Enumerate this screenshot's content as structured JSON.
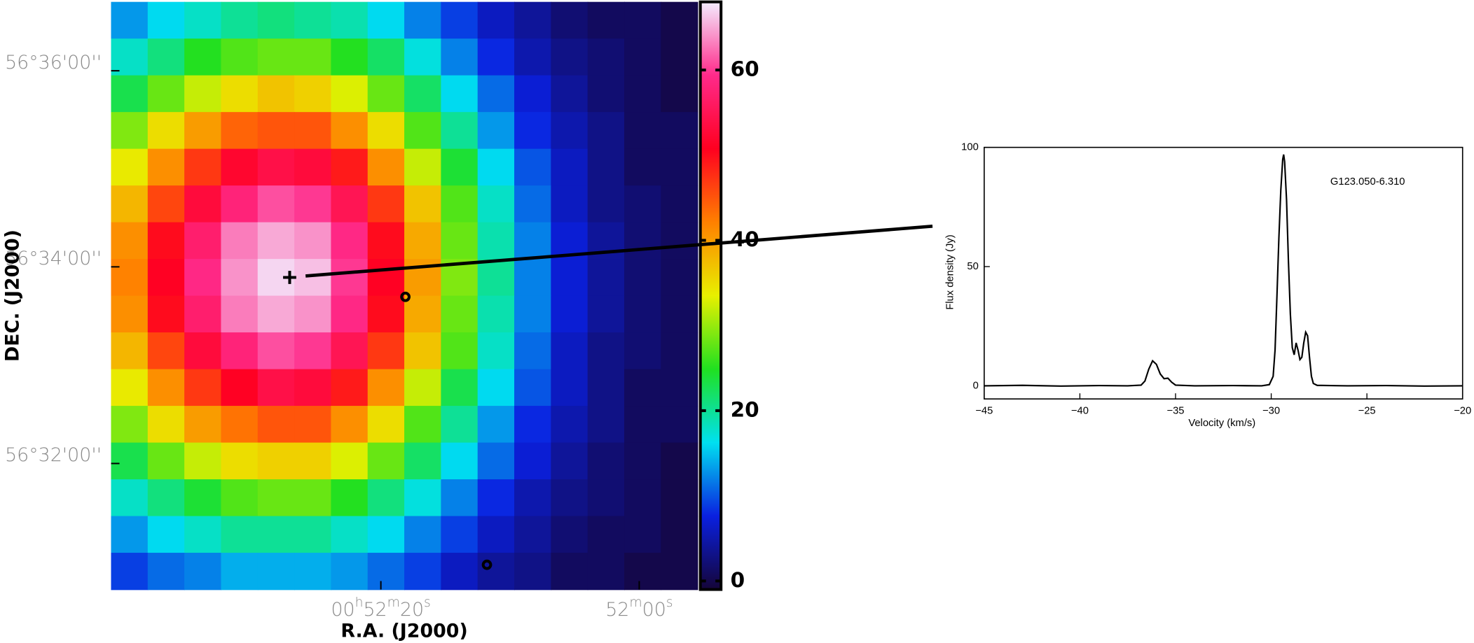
{
  "chart_data": [
    {
      "type": "heatmap",
      "xlabel": "R.A. (J2000)",
      "ylabel": "DEC. (J2000)",
      "xlim": [
        13.1703,
        12.9812
      ],
      "ylim": [
        56.5119,
        56.6117
      ],
      "xticks": [
        {
          "value": 13.0833,
          "label": "00h52m20s"
        },
        {
          "value": 13.0,
          "label": "52m00s"
        }
      ],
      "yticks": [
        {
          "value": 56.6,
          "label": "56°36'00''"
        },
        {
          "value": 56.5667,
          "label": "56°34'00''"
        },
        {
          "value": 56.5333,
          "label": "56°32'00''"
        }
      ],
      "clim": [
        -1,
        68
      ],
      "cticks": [
        0,
        20,
        40,
        60
      ],
      "colormap": [
        "#150538",
        "#0a20e0",
        "#00e0f0",
        "#20e020",
        "#e8f000",
        "#ff8000",
        "#ff0020",
        "#ff2a8a",
        "#f4ecff"
      ],
      "z": [
        [
          13,
          16,
          18,
          20,
          21,
          20,
          19,
          16,
          12,
          9,
          6,
          4,
          2,
          1,
          1,
          0
        ],
        [
          18,
          21,
          25,
          27,
          28,
          28,
          25,
          22,
          17,
          12,
          8,
          5,
          3,
          2,
          1,
          0
        ],
        [
          23,
          28,
          32,
          35,
          37,
          36,
          33,
          28,
          22,
          16,
          11,
          7,
          4,
          2,
          1,
          0
        ],
        [
          29,
          35,
          40,
          44,
          45,
          45,
          41,
          35,
          27,
          20,
          13,
          8,
          5,
          3,
          1,
          1
        ],
        [
          34,
          41,
          47,
          52,
          54,
          53,
          49,
          41,
          32,
          24,
          16,
          10,
          6,
          3,
          1,
          1
        ],
        [
          38,
          46,
          53,
          58,
          61,
          60,
          55,
          47,
          37,
          27,
          18,
          11,
          6,
          3,
          2,
          1
        ],
        [
          41,
          50,
          57,
          63,
          65,
          64,
          59,
          50,
          39,
          28,
          19,
          12,
          7,
          4,
          2,
          1
        ],
        [
          42,
          51,
          59,
          64,
          67,
          66,
          60,
          51,
          40,
          29,
          20,
          12,
          7,
          4,
          2,
          1
        ],
        [
          41,
          50,
          57,
          63,
          65,
          64,
          59,
          50,
          39,
          28,
          19,
          12,
          7,
          4,
          2,
          1
        ],
        [
          38,
          46,
          53,
          58,
          61,
          60,
          55,
          47,
          37,
          27,
          18,
          11,
          6,
          3,
          2,
          1
        ],
        [
          34,
          41,
          47,
          51,
          54,
          53,
          49,
          41,
          32,
          23,
          16,
          10,
          6,
          3,
          1,
          1
        ],
        [
          29,
          35,
          40,
          43,
          45,
          45,
          41,
          35,
          27,
          20,
          13,
          8,
          5,
          3,
          1,
          1
        ],
        [
          23,
          28,
          32,
          35,
          36,
          36,
          33,
          28,
          22,
          16,
          11,
          7,
          4,
          2,
          1,
          0
        ],
        [
          18,
          21,
          24,
          27,
          28,
          28,
          25,
          21,
          17,
          12,
          8,
          5,
          3,
          2,
          1,
          0
        ],
        [
          13,
          16,
          18,
          20,
          20,
          20,
          18,
          16,
          12,
          9,
          6,
          4,
          2,
          1,
          1,
          0
        ],
        [
          9,
          11,
          12,
          14,
          14,
          14,
          13,
          11,
          9,
          6,
          4,
          3,
          1,
          1,
          0,
          0
        ]
      ],
      "markers": [
        {
          "symbol": "plus",
          "x": 13.1127,
          "y": 56.5649
        },
        {
          "symbol": "circle",
          "x": 13.0754,
          "y": 56.5616
        },
        {
          "symbol": "circle",
          "x": 13.0491,
          "y": 56.5161
        }
      ],
      "marker_color": "#000000"
    },
    {
      "type": "line",
      "annotation": "G123.050-6.310",
      "xlabel": "Velocity (km/s)",
      "ylabel": "Flux density (Jy)",
      "xlim": [
        -45,
        -20
      ],
      "ylim": [
        -5.5,
        100
      ],
      "xticks": [
        {
          "value": -45,
          "label": "−45"
        },
        {
          "value": -40,
          "label": "−40"
        },
        {
          "value": -35,
          "label": "−35"
        },
        {
          "value": -30,
          "label": "−30"
        },
        {
          "value": -25,
          "label": "−25"
        },
        {
          "value": -20,
          "label": "−20"
        }
      ],
      "yticks": [
        0,
        50,
        100
      ],
      "color": "#000000",
      "x": [
        -45,
        -43,
        -41,
        -39,
        -37.5,
        -36.8,
        -36.6,
        -36.4,
        -36.2,
        -36.0,
        -35.8,
        -35.6,
        -35.4,
        -35.2,
        -35.0,
        -34,
        -32,
        -30.5,
        -30.1,
        -29.9,
        -29.8,
        -29.7,
        -29.6,
        -29.5,
        -29.4,
        -29.35,
        -29.3,
        -29.2,
        -29.1,
        -29.0,
        -28.9,
        -28.8,
        -28.7,
        -28.6,
        -28.5,
        -28.4,
        -28.3,
        -28.2,
        -28.1,
        -28.0,
        -27.9,
        -27.8,
        -27.6,
        -26,
        -24,
        -22,
        -20
      ],
      "values": [
        0,
        0.2,
        -0.1,
        0.1,
        0,
        0.3,
        2,
        7,
        10.5,
        9,
        5,
        3,
        3.2,
        1.5,
        0.3,
        0,
        0.1,
        0,
        0.5,
        4,
        15,
        38,
        62,
        82,
        95,
        97,
        94,
        78,
        52,
        30,
        16,
        13,
        18,
        15,
        11,
        12,
        18,
        22.5,
        21,
        12,
        4,
        1,
        0.2,
        0,
        0.1,
        -0.1,
        0
      ]
    }
  ]
}
